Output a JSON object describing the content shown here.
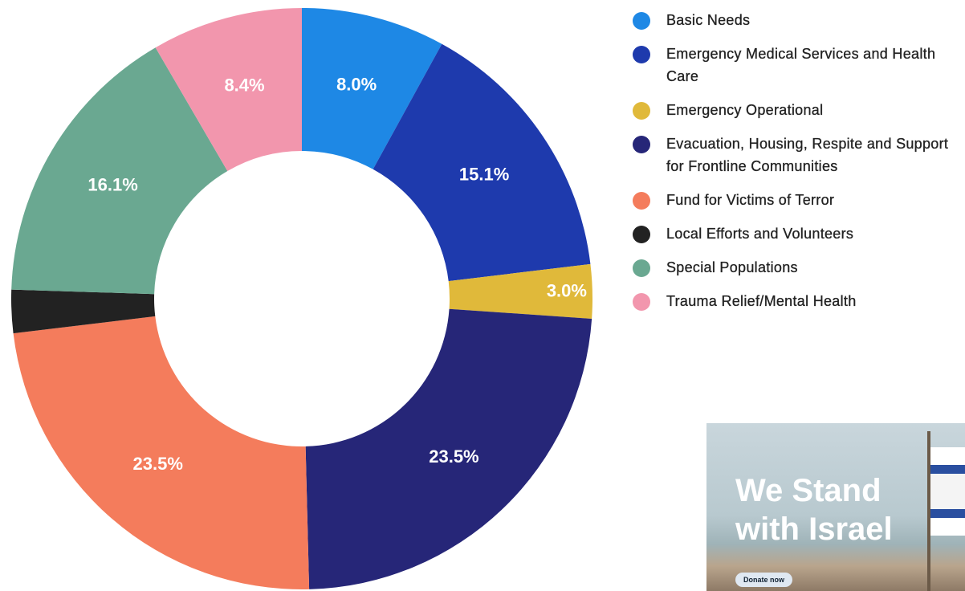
{
  "chart_data": {
    "type": "donut",
    "categories": [
      "Basic Needs",
      "Emergency Medical Services and Health Care",
      "Emergency Operational",
      "Evacuation, Housing, Respite and Support for Frontline Communities",
      "Fund for Victims of Terror",
      "Local Efforts and Volunteers",
      "Special Populations",
      "Trauma Relief/Mental Health"
    ],
    "values": [
      8,
      15.1,
      3,
      23.5,
      23.5,
      2.4,
      16.1,
      8.4
    ],
    "value_labels": [
      "8.0%",
      "15.1%",
      "3.0%",
      "23.5%",
      "23.5%",
      null,
      "16.1%",
      "8.4%"
    ],
    "colors": [
      "#1e88e5",
      "#1e3aad",
      "#e0b93a",
      "#262678",
      "#f47c5c",
      "#222222",
      "#6aa891",
      "#f296ad"
    ]
  },
  "ad": {
    "title": "We Stand with Israel",
    "button": "Donate now"
  }
}
